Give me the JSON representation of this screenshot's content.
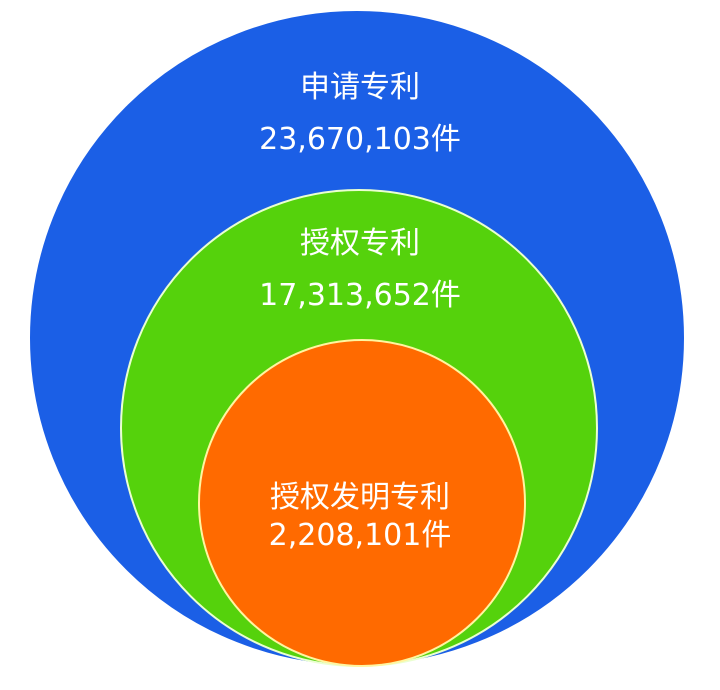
{
  "colors": {
    "outer": "#1b5fe6",
    "middle": "#55d20c",
    "inner": "#ff6a00"
  },
  "circles": [
    {
      "label": "申请专利",
      "value": "23,670,103件"
    },
    {
      "label": "授权专利",
      "value": "17,313,652件"
    },
    {
      "label": "授权发明专利",
      "value": "2,208,101件"
    }
  ]
}
